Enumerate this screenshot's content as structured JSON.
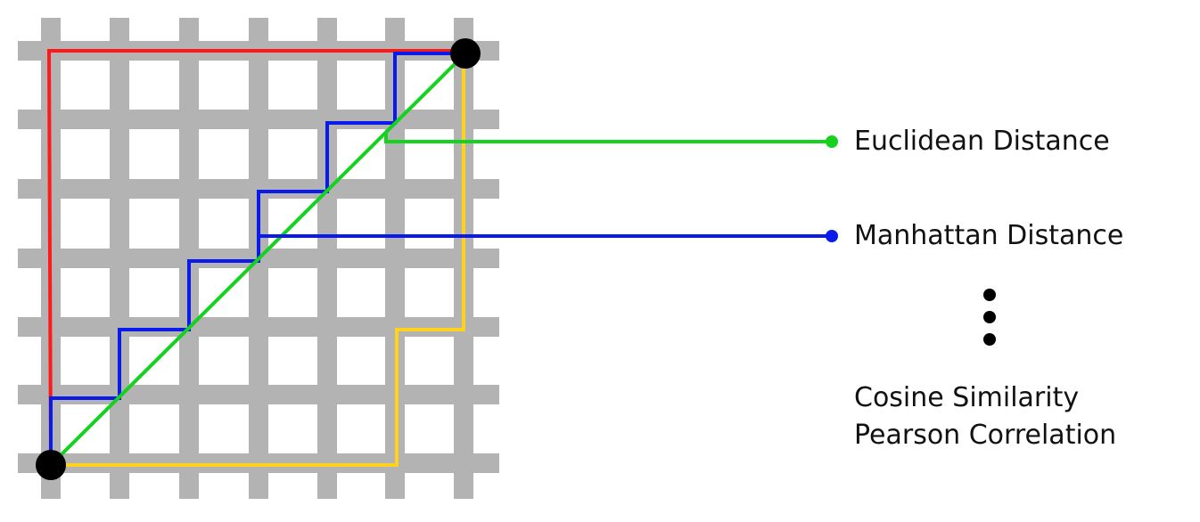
{
  "labels": {
    "euclidean": "Euclidean Distance",
    "manhattan": "Manhattan Distance",
    "cosine": "Cosine Similarity",
    "pearson": "Pearson Correlation"
  },
  "colors": {
    "grid": "#b3b3b3",
    "chebyshev_path": "#ff1a1a",
    "manhattan_path": "#0a1aeb",
    "euclidean_path": "#14d21e",
    "alternate_path": "#ffd21e",
    "endpoint": "#000000",
    "text": "#111111"
  }
}
